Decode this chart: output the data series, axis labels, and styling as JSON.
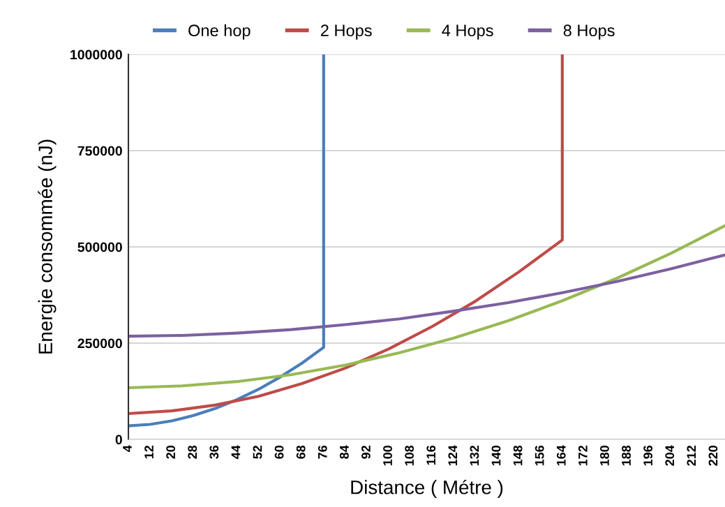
{
  "chart_data": {
    "type": "line",
    "xlabel": "Distance ( Métre )",
    "ylabel": "Energie consommée (nJ)",
    "xlim": [
      4,
      224
    ],
    "xticks": [
      4,
      12,
      20,
      28,
      36,
      44,
      52,
      60,
      68,
      76,
      84,
      92,
      100,
      108,
      116,
      124,
      132,
      140,
      148,
      156,
      164,
      172,
      180,
      188,
      196,
      204,
      212,
      220
    ],
    "ylim": [
      0,
      1000000
    ],
    "yticks": [
      0,
      250000,
      500000,
      750000,
      1000000
    ],
    "grid": "y",
    "legend": "top",
    "marker": "none",
    "line_style": "solid",
    "series": [
      {
        "name": "One hop",
        "color": "#4a7ebb",
        "x": [
          4,
          12,
          20,
          28,
          36,
          44,
          52,
          60,
          68,
          76,
          76
        ],
        "values": [
          35000,
          39000,
          48000,
          62000,
          80000,
          103000,
          130000,
          162000,
          198000,
          239000,
          1000000
        ]
      },
      {
        "name": "2 Hops",
        "color": "#be4b48",
        "x": [
          4,
          20,
          36,
          52,
          68,
          84,
          100,
          116,
          132,
          148,
          164,
          164
        ],
        "values": [
          67000,
          74000,
          89000,
          112000,
          145000,
          185000,
          235000,
          293000,
          359000,
          435000,
          518000,
          1000000
        ]
      },
      {
        "name": "4 Hops",
        "color": "#98b954",
        "x": [
          4,
          24,
          44,
          64,
          84,
          104,
          124,
          144,
          164,
          184,
          204,
          224
        ],
        "values": [
          134000,
          139000,
          150000,
          168000,
          193000,
          225000,
          263000,
          308000,
          360000,
          418000,
          483000,
          555000
        ]
      },
      {
        "name": "8 Hops",
        "color": "#7d60a0",
        "x": [
          4,
          24,
          44,
          64,
          84,
          104,
          124,
          144,
          164,
          184,
          204,
          224
        ],
        "values": [
          268000,
          270000,
          276000,
          285000,
          298000,
          313000,
          333000,
          355000,
          381000,
          410000,
          443000,
          479000
        ]
      }
    ]
  }
}
